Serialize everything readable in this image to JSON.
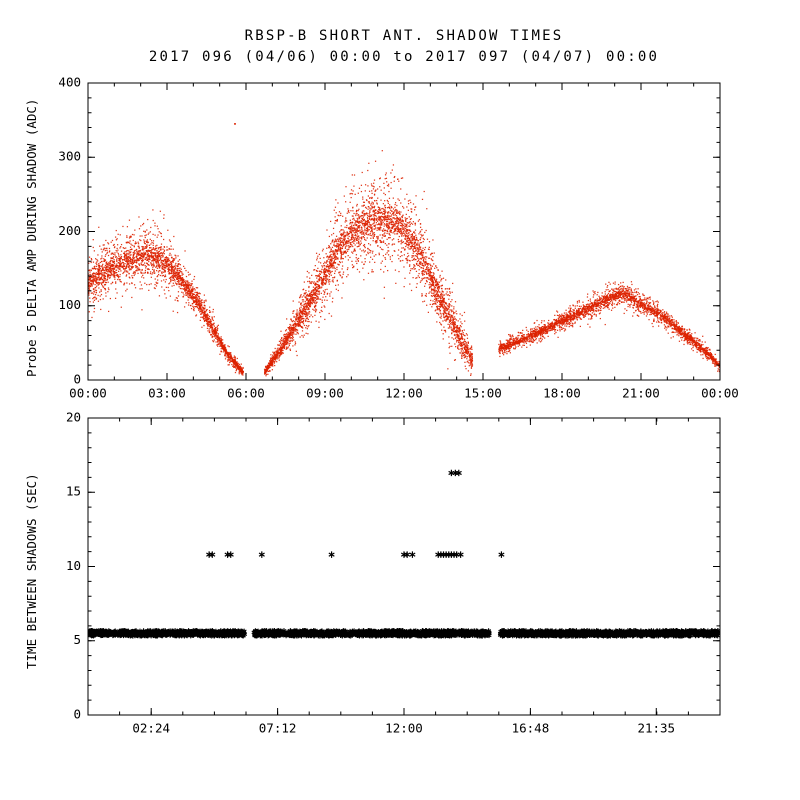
{
  "title": "RBSP-B SHORT ANT. SHADOW TIMES",
  "subtitle": "2017 096 (04/06) 00:00 to 2017 097 (04/07) 00:00",
  "chart_data": [
    {
      "id": "shadow-amplitude-panel",
      "type": "scatter",
      "ylabel": "Probe 5 DELTA AMP DURING SHADOW (ADC)",
      "xlabel": "",
      "xlim": [
        0,
        24
      ],
      "ylim": [
        0,
        400
      ],
      "xticks": [
        {
          "v": 0,
          "label": "00:00"
        },
        {
          "v": 3,
          "label": "03:00"
        },
        {
          "v": 6,
          "label": "06:00"
        },
        {
          "v": 9,
          "label": "09:00"
        },
        {
          "v": 12,
          "label": "12:00"
        },
        {
          "v": 15,
          "label": "15:00"
        },
        {
          "v": 18,
          "label": "18:00"
        },
        {
          "v": 21,
          "label": "21:00"
        },
        {
          "v": 24,
          "label": "00:00"
        }
      ],
      "x_minor_per_major": 3,
      "yticks": [
        0,
        100,
        200,
        300,
        400
      ],
      "y_minor_per_major": 5,
      "marker": "dot",
      "color": "#dd2200",
      "grid": false,
      "clusters": [
        {
          "name": "morning-shadow-arc",
          "t": [
            0.0,
            0.7,
            1.5,
            2.2,
            3.0,
            3.6,
            4.2,
            4.8,
            5.3,
            5.9
          ],
          "center": [
            130,
            148,
            162,
            170,
            158,
            132,
            103,
            66,
            34,
            10
          ],
          "spread": [
            38,
            40,
            42,
            44,
            40,
            30,
            22,
            14,
            10,
            6
          ],
          "count": 2600
        },
        {
          "name": "midday-shadow-arc",
          "t": [
            6.7,
            7.2,
            8.0,
            8.8,
            9.5,
            10.2,
            10.8,
            11.5,
            12.1,
            12.7,
            13.2,
            13.8,
            14.3,
            14.6
          ],
          "center": [
            10,
            35,
            80,
            130,
            175,
            205,
            215,
            215,
            200,
            165,
            120,
            80,
            45,
            25
          ],
          "spread": [
            7,
            14,
            28,
            45,
            55,
            62,
            65,
            65,
            60,
            55,
            48,
            40,
            30,
            18
          ],
          "count": 3800
        },
        {
          "name": "evening-shadow-arc",
          "t": [
            15.6,
            16.2,
            17.0,
            18.0,
            19.0,
            19.8,
            20.3,
            21.0,
            21.8,
            22.5,
            23.2,
            23.7,
            24.0
          ],
          "center": [
            42,
            50,
            62,
            80,
            96,
            110,
            118,
            102,
            86,
            66,
            46,
            30,
            18
          ],
          "spread": [
            10,
            11,
            12,
            14,
            16,
            18,
            18,
            16,
            14,
            12,
            10,
            8,
            7
          ],
          "count": 3000
        }
      ],
      "outliers": [
        [
          5.58,
          345
        ]
      ]
    },
    {
      "id": "time-between-shadows-panel",
      "type": "scatter",
      "ylabel": "TIME BETWEEN SHADOWS (SEC)",
      "xlabel": "",
      "xlim": [
        0,
        24
      ],
      "ylim": [
        0,
        20
      ],
      "xticks": [
        {
          "v": 2.4,
          "label": "02:24"
        },
        {
          "v": 7.2,
          "label": "07:12"
        },
        {
          "v": 12.0,
          "label": "12:00"
        },
        {
          "v": 16.8,
          "label": "16:48"
        },
        {
          "v": 21.58,
          "label": "21:35"
        }
      ],
      "x_minor_per_major": 4,
      "yticks": [
        0,
        5,
        10,
        15,
        20
      ],
      "y_minor_per_major": 5,
      "marker": "asterisk",
      "color": "#000000",
      "grid": false,
      "band": {
        "y": 5.5,
        "jitter": 0.18,
        "segments": [
          [
            0.02,
            5.95
          ],
          [
            6.3,
            15.25
          ],
          [
            15.65,
            23.95
          ]
        ],
        "points_per_hour": 120
      },
      "points": [
        [
          4.6,
          10.8
        ],
        [
          4.72,
          10.8
        ],
        [
          5.3,
          10.8
        ],
        [
          5.42,
          10.8
        ],
        [
          6.6,
          10.8
        ],
        [
          9.25,
          10.8
        ],
        [
          12.0,
          10.8
        ],
        [
          12.12,
          10.8
        ],
        [
          12.32,
          10.8
        ],
        [
          13.3,
          10.8
        ],
        [
          13.4,
          10.8
        ],
        [
          13.5,
          10.8
        ],
        [
          13.6,
          10.8
        ],
        [
          13.7,
          10.8
        ],
        [
          13.8,
          10.8
        ],
        [
          13.9,
          10.8
        ],
        [
          14.0,
          10.8
        ],
        [
          14.15,
          10.8
        ],
        [
          15.7,
          10.8
        ],
        [
          13.8,
          16.3
        ],
        [
          13.95,
          16.3
        ],
        [
          14.08,
          16.3
        ]
      ]
    }
  ]
}
